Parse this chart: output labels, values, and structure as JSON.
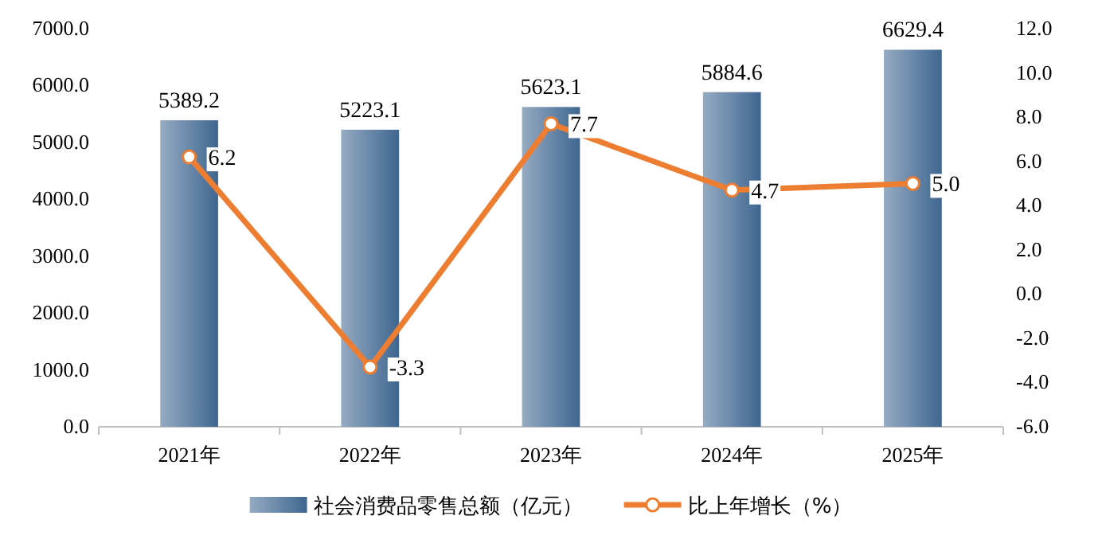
{
  "chart_data": {
    "type": "bar",
    "categories": [
      "2021年",
      "2022年",
      "2023年",
      "2024年",
      "2025年"
    ],
    "series": [
      {
        "name": "社会消费品零售总额（亿元）",
        "color": "#3f6690",
        "values": [
          5389.2,
          5223.1,
          5623.1,
          5884.6,
          6629.4
        ],
        "value_labels": [
          "5389.2",
          "5223.1",
          "5623.1",
          "5884.6",
          "6629.4"
        ]
      },
      {
        "name": "比上年增长（%）",
        "type": "line",
        "axis": "y2",
        "marker": "circle",
        "color": "#ed7d31",
        "values": [
          6.2,
          -3.3,
          7.7,
          4.7,
          5.0
        ],
        "value_labels": [
          "6.2",
          "-3.3",
          "7.7",
          "4.7",
          "5.0"
        ]
      }
    ],
    "ylim": [
      0,
      7000
    ],
    "yticks": [
      {
        "value": 0,
        "label": "0.0"
      },
      {
        "value": 1000,
        "label": "1000.0"
      },
      {
        "value": 2000,
        "label": "2000.0"
      },
      {
        "value": 3000,
        "label": "3000.0"
      },
      {
        "value": 4000,
        "label": "4000.0"
      },
      {
        "value": 5000,
        "label": "5000.0"
      },
      {
        "value": 6000,
        "label": "6000.0"
      },
      {
        "value": 7000,
        "label": "7000.0"
      }
    ],
    "y2lim": [
      -6,
      12
    ],
    "y2ticks": [
      {
        "value": -6,
        "label": "-6.0"
      },
      {
        "value": -4,
        "label": "-4.0"
      },
      {
        "value": -2,
        "label": "-2.0"
      },
      {
        "value": 0,
        "label": "0.0"
      },
      {
        "value": 2,
        "label": "2.0"
      },
      {
        "value": 4,
        "label": "4.0"
      },
      {
        "value": 6,
        "label": "6.0"
      },
      {
        "value": 8,
        "label": "8.0"
      },
      {
        "value": 10,
        "label": "10.0"
      },
      {
        "value": 12,
        "label": "12.0"
      }
    ],
    "legend": "bottom"
  }
}
